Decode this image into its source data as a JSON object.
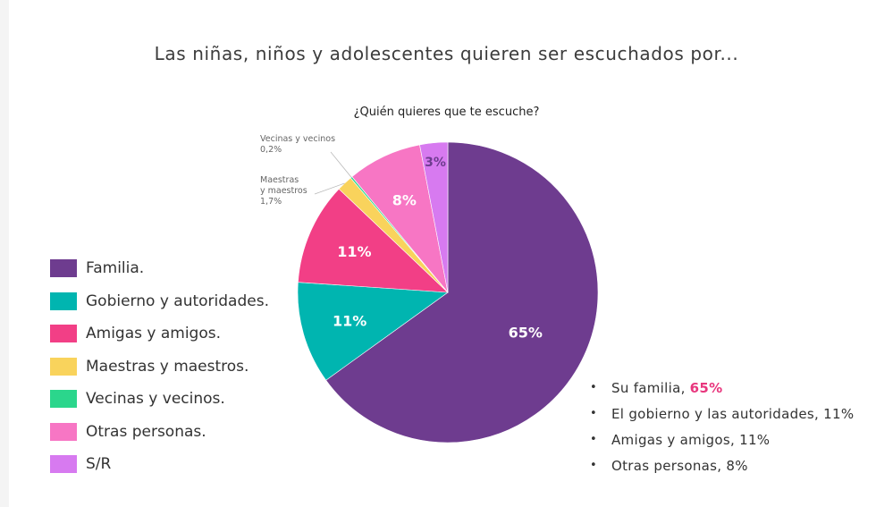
{
  "main_title": "Las niñas, niños y adolescentes quieren ser escuchados por...",
  "chart_data": {
    "type": "pie",
    "title": "¿Quién quieres que te escuche?",
    "series": [
      {
        "name": "Familia.",
        "value": 65,
        "label": "65%",
        "color": "#6e3c8f"
      },
      {
        "name": "Gobierno y autoridades.",
        "value": 11,
        "label": "11%",
        "color": "#00b5b0"
      },
      {
        "name": "Amigas y amigos.",
        "value": 11,
        "label": "11%",
        "color": "#f23f86"
      },
      {
        "name": "Maestras y maestros.",
        "value": 1.7,
        "label": "",
        "color": "#f9d35c"
      },
      {
        "name": "Vecinas y vecinos.",
        "value": 0.2,
        "label": "",
        "color": "#2bd68c"
      },
      {
        "name": "Otras personas.",
        "value": 8,
        "label": "8%",
        "color": "#f776c4"
      },
      {
        "name": "S/R",
        "value": 3,
        "label": "3%",
        "color": "#d77af0"
      }
    ],
    "legend_position": "left"
  },
  "callouts": {
    "vecinos": {
      "line1": "Vecinas y vecinos",
      "line2": "0,2%"
    },
    "maestros": {
      "line1": "Maestras",
      "line2": "y maestros",
      "line3": "1,7%"
    }
  },
  "bullets": [
    {
      "text": "Su familia,",
      "highlight": "65%"
    },
    {
      "text": "El gobierno y las autoridades, 11%"
    },
    {
      "text": "Amigas y amigos, 11%"
    },
    {
      "text": "Otras personas, 8%"
    }
  ],
  "bullet_symbol": "•",
  "colors": {
    "highlight": "#e8367d"
  }
}
